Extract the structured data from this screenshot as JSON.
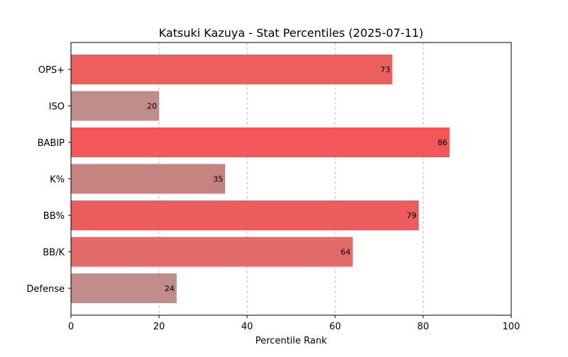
{
  "chart_data": {
    "type": "bar",
    "orientation": "horizontal",
    "title": "Katsuki Kazuya - Stat Percentiles (2025-07-11)",
    "xlabel": "Percentile Rank",
    "ylabel": "",
    "xlim": [
      0,
      100
    ],
    "xticks": [
      0,
      20,
      40,
      60,
      80,
      100
    ],
    "grid": "x-axis dashed",
    "legend": "none",
    "categories": [
      "OPS+",
      "ISO",
      "BABIP",
      "K%",
      "BB%",
      "BB/K",
      "Defense"
    ],
    "values": [
      73,
      20,
      86,
      35,
      79,
      64,
      24
    ],
    "bar_colors": [
      "#eb5f5f",
      "#c08c89",
      "#f45759",
      "#c68281",
      "#ec5c5e",
      "#e26a69",
      "#c08c89"
    ]
  }
}
